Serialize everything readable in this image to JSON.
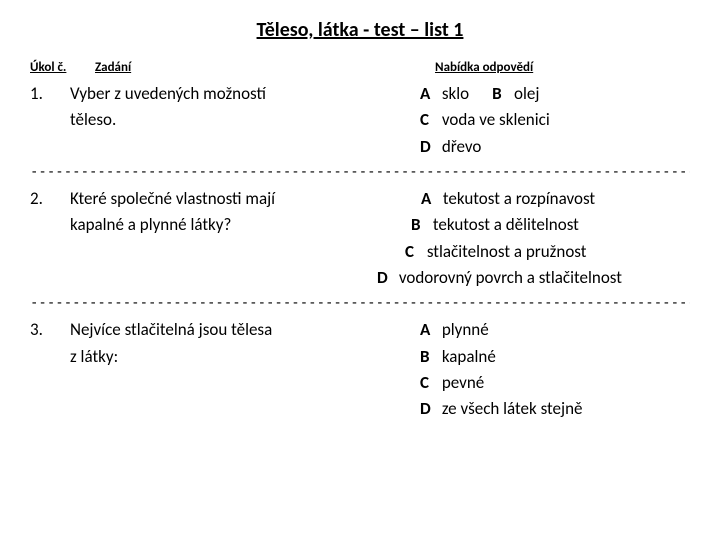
{
  "title": "Těleso, látka - test – list 1",
  "headers": {
    "num": "Úkol č.",
    "task": "Zadání",
    "ans": "Nabídka odpovědí"
  },
  "q1": {
    "num": "1.",
    "line1": "Vyber z uvedených možností",
    "line2": "těleso.",
    "a_lbl": "A",
    "a_txt": " sklo      ",
    "b_lbl": "B",
    "b_txt": " olej",
    "c_lbl": "C",
    "c_txt": " voda ve sklenici",
    "d_lbl": "D",
    "d_txt": " dřevo"
  },
  "sep1": "---------------------------------------------------------------------------------------------------------------------",
  "q2": {
    "num": "2.",
    "line1": "Které společné vlastnosti mají",
    "line2": "kapalné a plynné látky?",
    "a_lbl": "A",
    "a_txt": " tekutost a rozpínavost",
    "b_lbl": "B",
    "b_txt": " tekutost a dělitelnost",
    "c_lbl": "C",
    "c_txt": " stlačitelnost a pružnost",
    "d_lbl": "D",
    "d_txt": " vodorovný povrch a stlačitelnost"
  },
  "sep2": "---------------------------------------------------------------------------------------------------------",
  "q3": {
    "num": "3.",
    "line1": "Nejvíce stlačitelná jsou tělesa",
    "line2": " z látky:",
    "a_lbl": "A",
    "a_txt": " plynné",
    "b_lbl": "B",
    "b_txt": " kapalné",
    "c_lbl": "C",
    "c_txt": " pevné",
    "d_lbl": "D",
    "d_txt": " ze všech látek stejně"
  }
}
